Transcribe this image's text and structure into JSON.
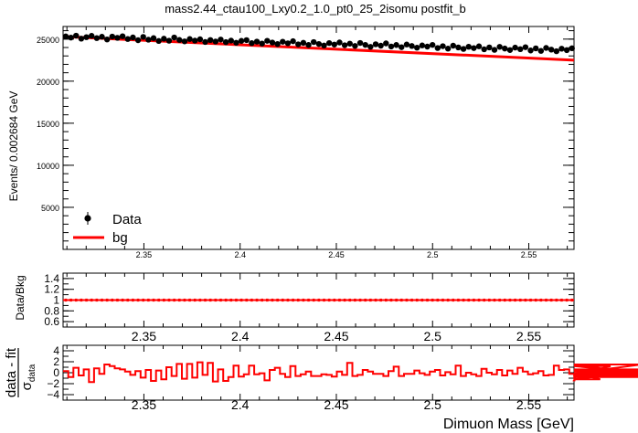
{
  "chart_data": [
    {
      "type": "scatter",
      "title": "mass2.44_ctau100_Lxy0.2_1.0_pt0_25_2isomu   postfit_b",
      "ylabel": "Events/ 0.002684 GeV",
      "xlim": [
        2.308,
        2.5735
      ],
      "ylim": [
        0,
        26500
      ],
      "x_ticks": [
        "2.35",
        "2.4",
        "2.45",
        "2.5",
        "2.55"
      ],
      "y_ticks": [
        "5000",
        "10000",
        "15000",
        "20000",
        "25000"
      ],
      "legend_position": "bottom-left",
      "legend": [
        {
          "label": "Data",
          "marker": "black-dot-errorbar"
        },
        {
          "label": "bg",
          "marker": "red-line"
        }
      ],
      "colors": {
        "data": "#000000",
        "fit": "#ff0000"
      },
      "fit_line": {
        "x": [
          2.308,
          2.5735
        ],
        "y": [
          25300,
          22500
        ]
      },
      "data_start": 2.3094,
      "bin_width": 0.002684,
      "data_values": [
        25320,
        25180,
        25410,
        25050,
        25230,
        25390,
        25120,
        25280,
        24960,
        25300,
        25150,
        25340,
        25010,
        25200,
        24870,
        25260,
        24930,
        25120,
        24780,
        25050,
        24810,
        25190,
        24900,
        24730,
        25010,
        24820,
        24980,
        24660,
        24890,
        24710,
        24950,
        24640,
        24820,
        24570,
        24790,
        24880,
        24520,
        24700,
        24470,
        24800,
        24590,
        24410,
        24690,
        24500,
        24750,
        24380,
        24560,
        24300,
        24650,
        24420,
        24240,
        24530,
        24350,
        24600,
        24270,
        24460,
        24190,
        24540,
        24310,
        24080,
        24390,
        24220,
        24490,
        24120,
        24300,
        24040,
        24360,
        24180,
        23980,
        24250,
        24110,
        24310,
        23940,
        24160,
        23870,
        24220,
        24010,
        23830,
        24090,
        23930,
        24140,
        23790,
        24010,
        23720,
        24080,
        23880,
        23700,
        23990,
        23800,
        24040,
        23650,
        23900,
        23600,
        23950,
        23750,
        23560,
        23860,
        23690,
        23910,
        23520,
        23760,
        23460,
        23810,
        23610,
        23420,
        23700,
        23530,
        23760,
        23360,
        23610,
        23310,
        23680,
        23470,
        23250,
        23550,
        23380,
        23590,
        23190,
        23420,
        22980,
        23300,
        23120,
        22900,
        23180,
        22780,
        22950,
        22620,
        22400
      ]
    },
    {
      "type": "scatter",
      "ylabel": "Data/Bkg",
      "xlim": [
        2.308,
        2.5735
      ],
      "ylim": [
        0.5,
        1.5
      ],
      "x_ticks": [
        "2.35",
        "2.4",
        "2.45",
        "2.5",
        "2.55"
      ],
      "y_ticks": [
        "0.6",
        "0.8",
        "1",
        "1.2",
        "1.4"
      ],
      "reference_line": 1,
      "note": "ratio points all near 1 with small error bars"
    },
    {
      "type": "line",
      "ylabel_numerator": "data - fit",
      "ylabel_denominator": "σ",
      "ylabel_subscript": "data",
      "xlabel": "Dimuon Mass [GeV]",
      "xlim": [
        2.308,
        2.5735
      ],
      "ylim": [
        -5,
        5
      ],
      "x_ticks": [
        "2.35",
        "2.4",
        "2.45",
        "2.5",
        "2.55"
      ],
      "y_ticks": [
        "4",
        "2",
        "0",
        "−2",
        "−4"
      ],
      "pulls": [
        0.3,
        -0.8,
        0.9,
        -0.5,
        0.6,
        -1.7,
        0.8,
        -0.2,
        1.5,
        1.2,
        0.8,
        0.6,
        0.2,
        -0.4,
        0.3,
        -0.9,
        0.5,
        -1.5,
        0.4,
        -1.2,
        1.0,
        -0.6,
        1.6,
        -1.1,
        1.6,
        -0.9,
        1.9,
        -0.4,
        1.8,
        -1.6,
        0.6,
        -1.5,
        -0.8,
        1.3,
        -0.7,
        -0.3,
        1.3,
        -0.3,
        -0.1,
        -1.4,
        0.5,
        0.9,
        -0.2,
        -0.8,
        1.2,
        -0.6,
        -0.3,
        0.2,
        -0.6,
        -0.6,
        -0.3,
        -0.4,
        -0.7,
        0.2,
        -0.4,
        1.8,
        -0.6,
        -0.4,
        0.5,
        0.2,
        -0.2,
        -0.2,
        -0.6,
        0.3,
        1.1,
        -0.6,
        -0.2,
        -0.2,
        0.4,
        -0.1,
        -0.4,
        0.2,
        0.5,
        -0.5,
        0.1,
        -0.3,
        1.3,
        -0.6,
        0.0,
        -0.3,
        -0.6,
        0.7,
        0.0,
        -0.3,
        0.5,
        -0.5,
        0.4,
        -0.2,
        0.9,
        0.2,
        -0.3,
        -0.1,
        0.3,
        -0.5,
        -0.4,
        1.3,
        0.5,
        0.6,
        -0.2,
        -1.4,
        0.4,
        -0.2,
        -0.8,
        0.0,
        -1.2,
        -0.5,
        1.2,
        0.5,
        -0.3,
        0.6,
        -0.4,
        -0.1,
        1.5,
        -0.4,
        0.3,
        -0.2,
        0.5,
        -0.5,
        -0.3,
        0.1,
        0.1,
        -0.2,
        -0.8,
        -0.6,
        0.6,
        0.1,
        -0.6,
        0.4
      ]
    }
  ]
}
